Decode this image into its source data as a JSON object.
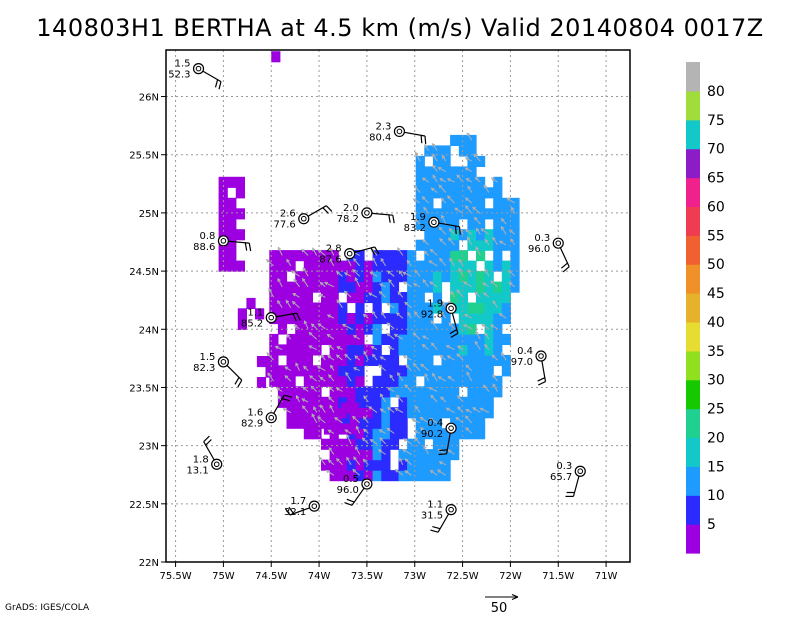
{
  "title": "140803H1 BERTHA at 4.5 km (m/s) Valid 20140804 0017Z",
  "footer": "GrADS: IGES/COLA",
  "reference_vector": {
    "label": "50"
  },
  "colorbar": {
    "labels": [
      "5",
      "10",
      "15",
      "20",
      "25",
      "30",
      "35",
      "40",
      "45",
      "50",
      "55",
      "60",
      "65",
      "70",
      "75",
      "80"
    ],
    "colors": [
      "#9c00e0",
      "#2b2bff",
      "#1e9bff",
      "#12c8c8",
      "#20d090",
      "#16c800",
      "#90e020",
      "#e6dc32",
      "#e6b22c",
      "#f09028",
      "#f06030",
      "#f03c50",
      "#f0208c",
      "#8c1cc8",
      "#12c8c8",
      "#a0dc3c",
      "#b4b4b4"
    ]
  },
  "chart_data": {
    "type": "heatmap",
    "title": "140803H1 BERTHA at 4.5 km (m/s) Valid 20140804 0017Z",
    "xlabel": "",
    "ylabel": "",
    "xlim": [
      -75.6,
      -70.75
    ],
    "ylim": [
      22.0,
      26.4
    ],
    "x_ticks": [
      "75.5W",
      "75W",
      "74.5W",
      "74W",
      "73.5W",
      "73W",
      "72.5W",
      "72W",
      "71.5W",
      "71W"
    ],
    "y_ticks": [
      "22N",
      "22.5N",
      "23N",
      "23.5N",
      "24N",
      "24.5N",
      "25N",
      "25.5N",
      "26N"
    ],
    "grid": true,
    "station_obs": [
      {
        "label_top": "1.5",
        "label_bottom": "52.3",
        "lon": -75.26,
        "lat": 26.24,
        "dir": 120
      },
      {
        "label_top": "2.3",
        "label_bottom": "80.4",
        "lon": -73.16,
        "lat": 25.7,
        "dir": 100
      },
      {
        "label_top": "2.6",
        "label_bottom": "77.6",
        "lon": -74.16,
        "lat": 24.95,
        "dir": 60
      },
      {
        "label_top": "2.0",
        "label_bottom": "78.2",
        "lon": -73.5,
        "lat": 25.0,
        "dir": 95
      },
      {
        "label_top": "1.9",
        "label_bottom": "83.2",
        "lon": -72.8,
        "lat": 24.92,
        "dir": 100
      },
      {
        "label_top": "0.8",
        "label_bottom": "88.6",
        "lon": -75.0,
        "lat": 24.76,
        "dir": 95
      },
      {
        "label_top": "0.3",
        "label_bottom": "96.0",
        "lon": -71.5,
        "lat": 24.74,
        "dir": 155
      },
      {
        "label_top": "2.8",
        "label_bottom": "87.6",
        "lon": -73.68,
        "lat": 24.65,
        "dir": 75
      },
      {
        "label_top": "1.9",
        "label_bottom": "92.8",
        "lon": -72.62,
        "lat": 24.18,
        "dir": 165
      },
      {
        "label_top": "1.1",
        "label_bottom": "85.2",
        "lon": -74.5,
        "lat": 24.1,
        "dir": 80
      },
      {
        "label_top": "0.4",
        "label_bottom": "97.0",
        "lon": -71.68,
        "lat": 23.77,
        "dir": 170
      },
      {
        "label_top": "1.5",
        "label_bottom": "82.3",
        "lon": -75.0,
        "lat": 23.72,
        "dir": 135
      },
      {
        "label_top": "1.6",
        "label_bottom": "82.9",
        "lon": -74.5,
        "lat": 23.24,
        "dir": 30
      },
      {
        "label_top": "0.4",
        "label_bottom": "90.2",
        "lon": -72.62,
        "lat": 23.15,
        "dir": 190
      },
      {
        "label_top": "1.8",
        "label_bottom": "13.1",
        "lon": -75.07,
        "lat": 22.84,
        "dir": 330
      },
      {
        "label_top": "0.3",
        "label_bottom": "65.7",
        "lon": -71.27,
        "lat": 22.78,
        "dir": 195
      },
      {
        "label_top": "0.5",
        "label_bottom": "96.0",
        "lon": -73.5,
        "lat": 22.67,
        "dir": 215
      },
      {
        "label_top": "1.7",
        "label_bottom": "32.1",
        "lon": -74.05,
        "lat": 22.48,
        "dir": 250
      },
      {
        "label_top": "1.1",
        "label_bottom": "31.5",
        "lon": -72.62,
        "lat": 22.45,
        "dir": 210
      }
    ]
  }
}
